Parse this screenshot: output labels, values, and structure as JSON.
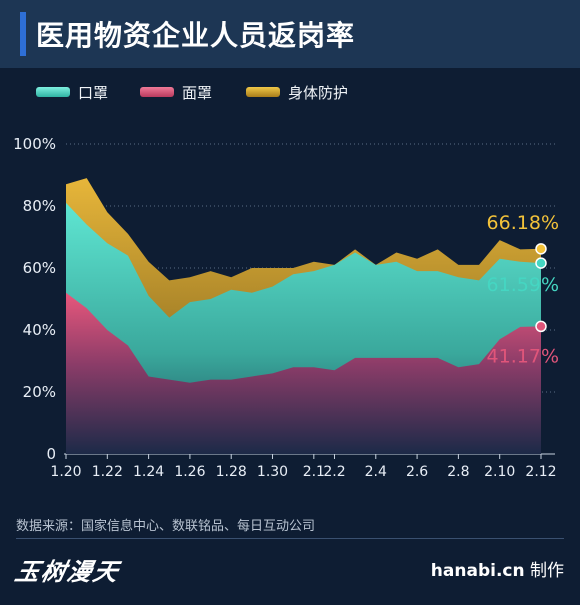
{
  "header": {
    "title": "医用物资企业人员返岗率"
  },
  "legend": [
    {
      "label": "口罩",
      "color": "#45d6c2"
    },
    {
      "label": "面罩",
      "color": "#e0557a"
    },
    {
      "label": "身体防护",
      "color": "#d8a62c"
    }
  ],
  "chart_data": {
    "type": "area",
    "x": [
      "1.20",
      "1.21",
      "1.22",
      "1.23",
      "1.24",
      "1.25",
      "1.26",
      "1.27",
      "1.28",
      "1.29",
      "1.30",
      "1.31",
      "2.1",
      "2.2",
      "2.3",
      "2.4",
      "2.5",
      "2.6",
      "2.7",
      "2.8",
      "2.9",
      "2.10",
      "2.11",
      "2.12"
    ],
    "x_tick_labels": [
      "1.20",
      "1.22",
      "1.24",
      "1.26",
      "1.28",
      "1.30",
      "2.1",
      "2.2",
      "2.4",
      "2.6",
      "2.8",
      "2.10",
      "2.12"
    ],
    "ylim": [
      0,
      100
    ],
    "y_ticks": [
      "0",
      "20%",
      "40%",
      "60%",
      "80%",
      "100%"
    ],
    "grid": "horizontal-dotted",
    "series": [
      {
        "name": "身体防护",
        "color": "#d8a62c",
        "values": [
          87,
          89,
          78,
          71,
          62,
          56,
          57,
          59,
          57,
          60,
          60,
          60,
          62,
          61,
          66,
          61,
          65,
          63,
          66,
          61,
          61,
          69,
          66,
          66.18
        ]
      },
      {
        "name": "口罩",
        "color": "#45d6c2",
        "values": [
          81,
          74,
          68,
          64,
          51,
          44,
          49,
          50,
          53,
          52,
          54,
          58,
          59,
          61,
          65,
          61,
          62,
          59,
          59,
          57,
          56,
          63,
          62,
          61.59
        ]
      },
      {
        "name": "面罩",
        "color": "#e0557a",
        "values": [
          52,
          47,
          40,
          35,
          25,
          24,
          23,
          24,
          24,
          25,
          26,
          28,
          28,
          27,
          31,
          31,
          31,
          31,
          31,
          28,
          29,
          37,
          41,
          41.17
        ]
      }
    ],
    "end_labels": [
      {
        "text": "66.18%",
        "color": "#f2c23a",
        "value": 66.18
      },
      {
        "text": "61.59%",
        "color": "#45d6c2",
        "value": 61.59
      },
      {
        "text": "41.17%",
        "color": "#e0557a",
        "value": 41.17
      }
    ]
  },
  "footer": {
    "source": "数据来源：国家信息中心、数联铭品、每日互动公司",
    "logo": "玉树漫天",
    "site": "hanabi.cn",
    "credit_suffix": "制作"
  }
}
